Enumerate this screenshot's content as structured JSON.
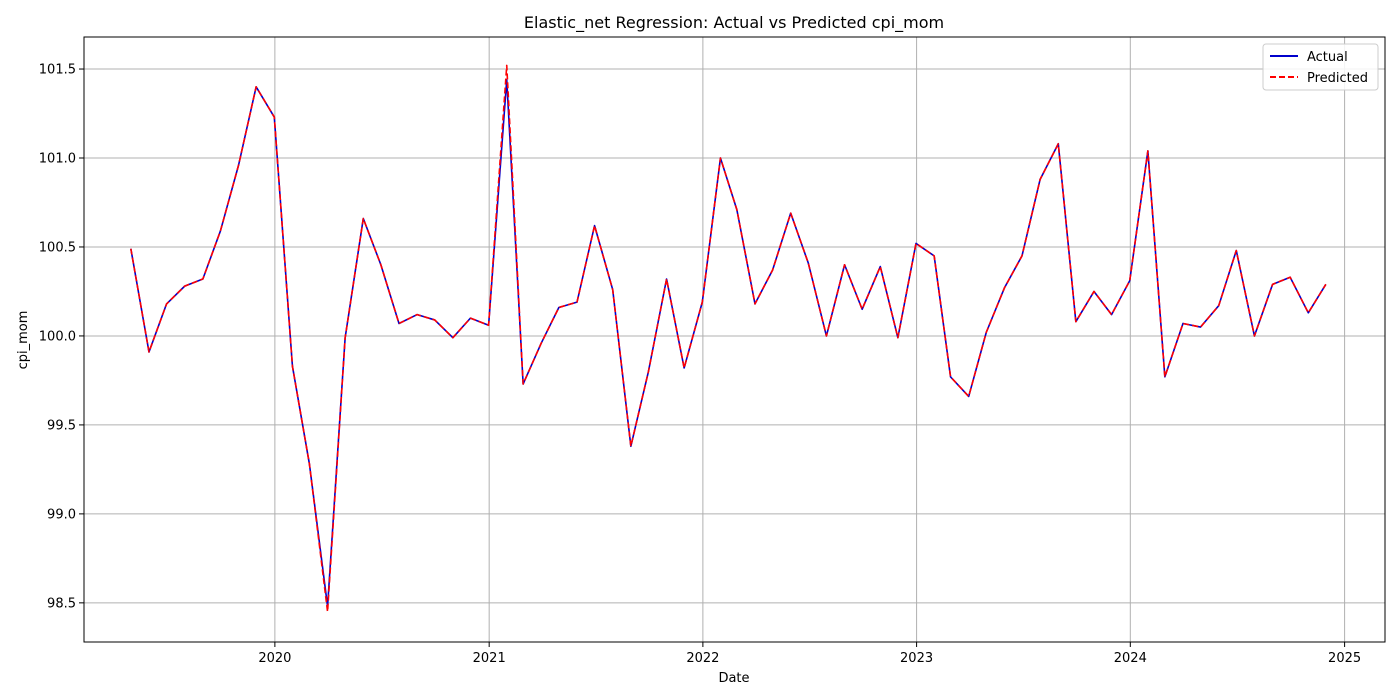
{
  "chart_data": {
    "type": "line",
    "title": "Elastic_net Regression: Actual vs Predicted cpi_mom",
    "xlabel": "Date",
    "ylabel": "cpi_mom",
    "x_axis_type": "date",
    "xlim": [
      "2019-02-09",
      "2025-03-11"
    ],
    "ylim": [
      98.28,
      101.68
    ],
    "x_ticks": [
      "2020-01-01",
      "2021-01-01",
      "2022-01-01",
      "2023-01-01",
      "2024-01-01",
      "2025-01-01"
    ],
    "x_tick_labels": [
      "2020",
      "2021",
      "2022",
      "2023",
      "2024",
      "2025"
    ],
    "y_ticks": [
      98.5,
      99.0,
      99.5,
      100.0,
      100.5,
      101.0,
      101.5
    ],
    "y_tick_labels": [
      "98.5",
      "99.0",
      "99.5",
      "100.0",
      "100.5",
      "101.0",
      "101.5"
    ],
    "grid": true,
    "legend_position": "top-right",
    "x": [
      "2019-04-30",
      "2019-05-31",
      "2019-06-30",
      "2019-07-31",
      "2019-08-31",
      "2019-09-30",
      "2019-10-31",
      "2019-11-30",
      "2019-12-31",
      "2020-01-31",
      "2020-02-29",
      "2020-03-31",
      "2020-04-30",
      "2020-05-31",
      "2020-06-30",
      "2020-07-31",
      "2020-08-31",
      "2020-09-30",
      "2020-10-31",
      "2020-11-30",
      "2020-12-31",
      "2021-01-31",
      "2021-02-28",
      "2021-03-31",
      "2021-04-30",
      "2021-05-31",
      "2021-06-30",
      "2021-07-31",
      "2021-08-31",
      "2021-09-30",
      "2021-10-31",
      "2021-11-30",
      "2021-12-31",
      "2022-01-31",
      "2022-02-28",
      "2022-03-31",
      "2022-04-30",
      "2022-05-31",
      "2022-06-30",
      "2022-07-31",
      "2022-08-31",
      "2022-09-30",
      "2022-10-31",
      "2022-11-30",
      "2022-12-31",
      "2023-01-31",
      "2023-02-28",
      "2023-03-31",
      "2023-04-30",
      "2023-05-31",
      "2023-06-30",
      "2023-07-31",
      "2023-08-31",
      "2023-09-30",
      "2023-10-31",
      "2023-11-30",
      "2023-12-31",
      "2024-01-31",
      "2024-02-29",
      "2024-03-31",
      "2024-04-30",
      "2024-05-31",
      "2024-06-30",
      "2024-07-31",
      "2024-08-31",
      "2024-09-30",
      "2024-10-31",
      "2024-11-30"
    ],
    "series": [
      {
        "name": "Actual",
        "color": "#0000cc",
        "style": "solid",
        "values": [
          100.49,
          99.91,
          100.18,
          100.28,
          100.32,
          100.59,
          100.96,
          101.4,
          101.23,
          99.83,
          99.28,
          98.48,
          99.99,
          100.66,
          100.4,
          100.07,
          100.12,
          100.09,
          99.99,
          100.1,
          100.06,
          101.44,
          99.73,
          99.96,
          100.16,
          100.19,
          100.62,
          100.26,
          99.38,
          99.8,
          100.32,
          99.82,
          100.19,
          101.0,
          100.71,
          100.18,
          100.37,
          100.69,
          100.41,
          100.0,
          100.4,
          100.15,
          100.39,
          99.99,
          100.52,
          100.45,
          99.77,
          99.66,
          100.02,
          100.27,
          100.45,
          100.88,
          101.08,
          100.08,
          100.25,
          100.12,
          100.31,
          101.04,
          99.77,
          100.07,
          100.05,
          100.17,
          100.48,
          100.0,
          100.29,
          100.33,
          100.13,
          100.29
        ]
      },
      {
        "name": "Predicted",
        "color": "#ff0000",
        "style": "dashed",
        "values": [
          100.49,
          99.91,
          100.18,
          100.28,
          100.32,
          100.59,
          100.96,
          101.4,
          101.23,
          99.83,
          99.28,
          98.45,
          99.99,
          100.66,
          100.4,
          100.07,
          100.12,
          100.09,
          99.99,
          100.1,
          100.06,
          101.52,
          99.73,
          99.96,
          100.16,
          100.19,
          100.62,
          100.26,
          99.38,
          99.8,
          100.32,
          99.82,
          100.19,
          101.0,
          100.71,
          100.18,
          100.37,
          100.69,
          100.41,
          100.0,
          100.4,
          100.15,
          100.39,
          99.99,
          100.52,
          100.45,
          99.77,
          99.66,
          100.02,
          100.27,
          100.45,
          100.88,
          101.08,
          100.08,
          100.25,
          100.12,
          100.31,
          101.04,
          99.77,
          100.07,
          100.05,
          100.17,
          100.48,
          100.0,
          100.29,
          100.33,
          100.13,
          100.29
        ]
      }
    ]
  }
}
